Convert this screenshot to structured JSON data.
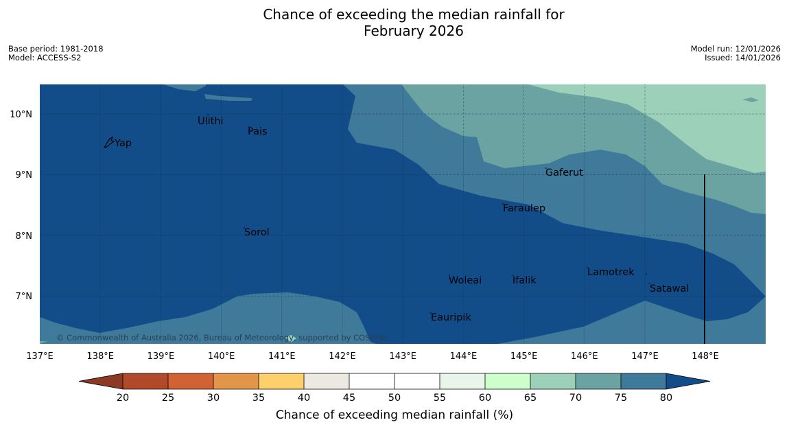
{
  "title": {
    "line1": "Chance of exceeding the median rainfall for",
    "line2": "February 2026"
  },
  "meta": {
    "base_period": "Base period: 1981-2018",
    "model": "Model: ACCESS-S2",
    "model_run": "Model run: 12/01/2026",
    "issued": "Issued: 14/01/2026"
  },
  "map": {
    "lon_ticks": [
      "137°E",
      "138°E",
      "139°E",
      "140°E",
      "141°E",
      "142°E",
      "143°E",
      "144°E",
      "145°E",
      "146°E",
      "147°E",
      "148°E"
    ],
    "lat_ticks": [
      "10°N",
      "9°N",
      "8°N",
      "7°N"
    ],
    "places": [
      "Yap",
      "Ulithi",
      "Pais",
      "Gaferut",
      "Faraulep",
      "Sorol",
      "Lamotrek",
      "Woleai",
      "Ifalik",
      "Satawal",
      "Eauripik"
    ],
    "copyright": "© Commonwealth of Australia 2026, Bureau of Meteorology, supported by COSPPac"
  },
  "colorbar": {
    "ticks": [
      "20",
      "25",
      "30",
      "35",
      "40",
      "45",
      "50",
      "55",
      "60",
      "65",
      "70",
      "75",
      "80"
    ],
    "colors": {
      "under": "#8c3a23",
      "20-25": "#b04a2a",
      "25-30": "#d06233",
      "30-35": "#e3954a",
      "35-40": "#fdd06c",
      "40-45": "#ece9e2",
      "45-50": "#ffffff",
      "50-55": "#ffffff",
      "55-60": "#eaf5ea",
      "60-65": "#ccffcc",
      "65-70": "#9dd0b8",
      "70-75": "#6ba3a3",
      "75-80": "#3f7a9a",
      "over": "#134d89"
    },
    "label": "Chance of exceeding median rainfall (%)"
  }
}
